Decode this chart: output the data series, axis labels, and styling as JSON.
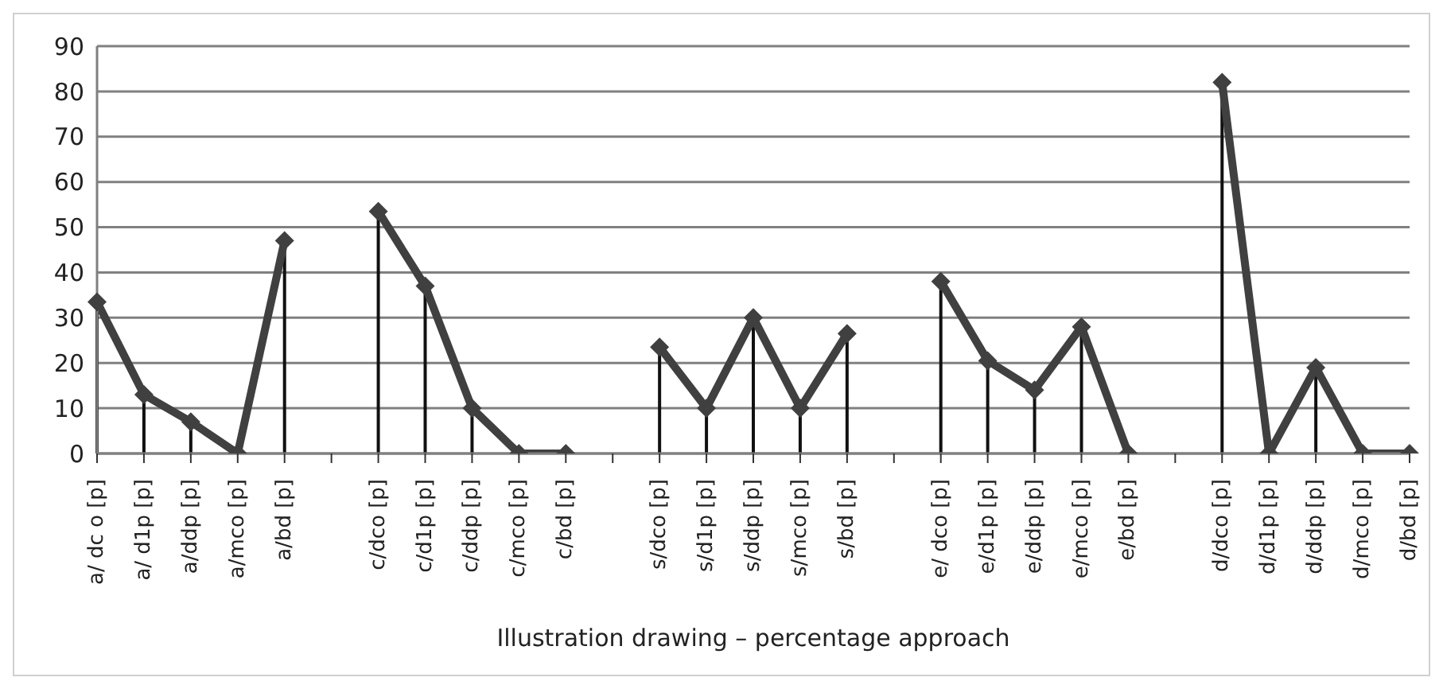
{
  "chart_data": {
    "type": "line",
    "xlabel": "Illustration drawing – percentage approach",
    "categories": [
      "a/ dc o [p]",
      "a/ d1p [p]",
      "a/ddp [p]",
      "a/mco [p]",
      "a/bd [p]",
      null,
      "c/dco [p]",
      "c/d1p [p]",
      "c/ddp [p]",
      "c/mco [p]",
      "c/bd [p]",
      null,
      "s/dco [p]",
      "s/d1p [p]",
      "s/ddp [p]",
      "s/mco [p]",
      "s/bd [p]",
      null,
      "e/ dco [p]",
      "e/d1p [p]",
      "e/ddp [p]",
      "e/mco [p]",
      "e/bd [p]",
      null,
      "d/dco [p]",
      "d/d1p [p]",
      "d/ddp [p]",
      "d/mco [p]",
      "d/bd [p]"
    ],
    "series": [
      {
        "color": "#404040",
        "values": [
          33.5,
          13,
          7,
          0,
          47,
          null,
          53.5,
          37,
          10,
          0,
          0,
          null,
          23.5,
          10,
          30,
          10,
          26.5,
          null,
          38,
          20.5,
          14,
          28,
          0,
          null,
          82,
          0,
          19,
          0,
          0
        ],
        "errors": [
          [
            0,
            33.5
          ],
          [
            0,
            13
          ],
          [
            0,
            7
          ],
          [
            0,
            0
          ],
          [
            0,
            47
          ],
          null,
          [
            0,
            53.5
          ],
          [
            0,
            37
          ],
          [
            0,
            10
          ],
          [
            0,
            0
          ],
          [
            0,
            0
          ],
          null,
          [
            0,
            23.5
          ],
          [
            0,
            10
          ],
          [
            0,
            30
          ],
          [
            0,
            10
          ],
          [
            0,
            26.5
          ],
          null,
          [
            0,
            38
          ],
          [
            0,
            20.5
          ],
          [
            0,
            14
          ],
          [
            0,
            28
          ],
          [
            0,
            0
          ],
          null,
          [
            0,
            82
          ],
          [
            0,
            0
          ],
          [
            0,
            19
          ],
          [
            0,
            0
          ],
          [
            0,
            0
          ]
        ]
      }
    ],
    "ylim": [
      0,
      90
    ],
    "yticks": [
      0,
      10,
      20,
      30,
      40,
      50,
      60,
      70,
      80,
      90
    ],
    "grid": "y",
    "legend": false,
    "marker": "diamond",
    "line_style": "solid"
  }
}
